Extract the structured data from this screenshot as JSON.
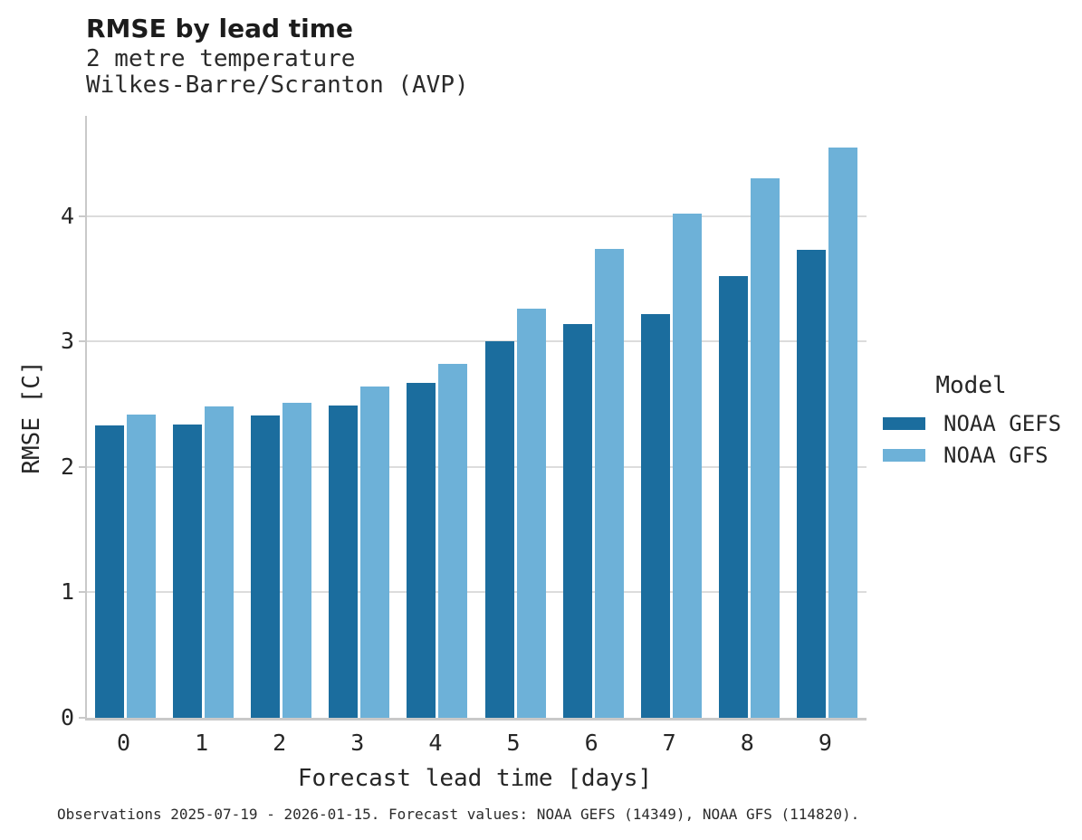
{
  "header": {
    "title": "RMSE by lead time",
    "subtitle_line1": "2 metre temperature",
    "subtitle_line2": "Wilkes-Barre/Scranton (AVP)"
  },
  "chart_data": {
    "type": "bar",
    "title": "RMSE by lead time",
    "subtitle": [
      "2 metre temperature",
      "Wilkes-Barre/Scranton (AVP)"
    ],
    "categories": [
      "0",
      "1",
      "2",
      "3",
      "4",
      "5",
      "6",
      "7",
      "8",
      "9"
    ],
    "series": [
      {
        "name": "NOAA GEFS",
        "color": "#1b6d9e",
        "values": [
          2.33,
          2.34,
          2.41,
          2.49,
          2.67,
          3.0,
          3.14,
          3.22,
          3.52,
          3.73
        ]
      },
      {
        "name": "NOAA GFS",
        "color": "#6db1d8",
        "values": [
          2.42,
          2.48,
          2.51,
          2.64,
          2.82,
          3.26,
          3.74,
          4.02,
          4.3,
          4.55
        ]
      }
    ],
    "xlabel": "Forecast lead time [days]",
    "ylabel": "RMSE [C]",
    "ylim": [
      0,
      4.8
    ],
    "yticks": [
      0,
      1,
      2,
      3,
      4
    ],
    "grid": true,
    "legend_position": "right-of-plot"
  },
  "legend": {
    "title": "Model",
    "items": [
      {
        "label": "NOAA GEFS",
        "color": "#1b6d9e"
      },
      {
        "label": "NOAA GFS",
        "color": "#6db1d8"
      }
    ]
  },
  "footer": {
    "caption": "Observations 2025-07-19 - 2026-01-15. Forecast values: NOAA GEFS (14349), NOAA GFS (114820)."
  },
  "colors": {
    "bar_dark": "#1b6d9e",
    "bar_light": "#6db1d8",
    "gridline": "#dcdcdc",
    "spine": "#c9c9c9",
    "background": "#ffffff"
  }
}
